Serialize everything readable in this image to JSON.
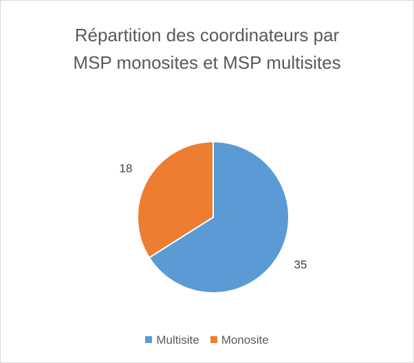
{
  "chart_data": {
    "type": "pie",
    "title": "Répartition des coordinateurs par MSP monosites et MSP multisites",
    "categories": [
      "Multisite",
      "Monosite"
    ],
    "values": [
      35,
      18
    ],
    "colors": [
      "#5b9bd5",
      "#ed7d31"
    ],
    "legend": "bottom"
  }
}
